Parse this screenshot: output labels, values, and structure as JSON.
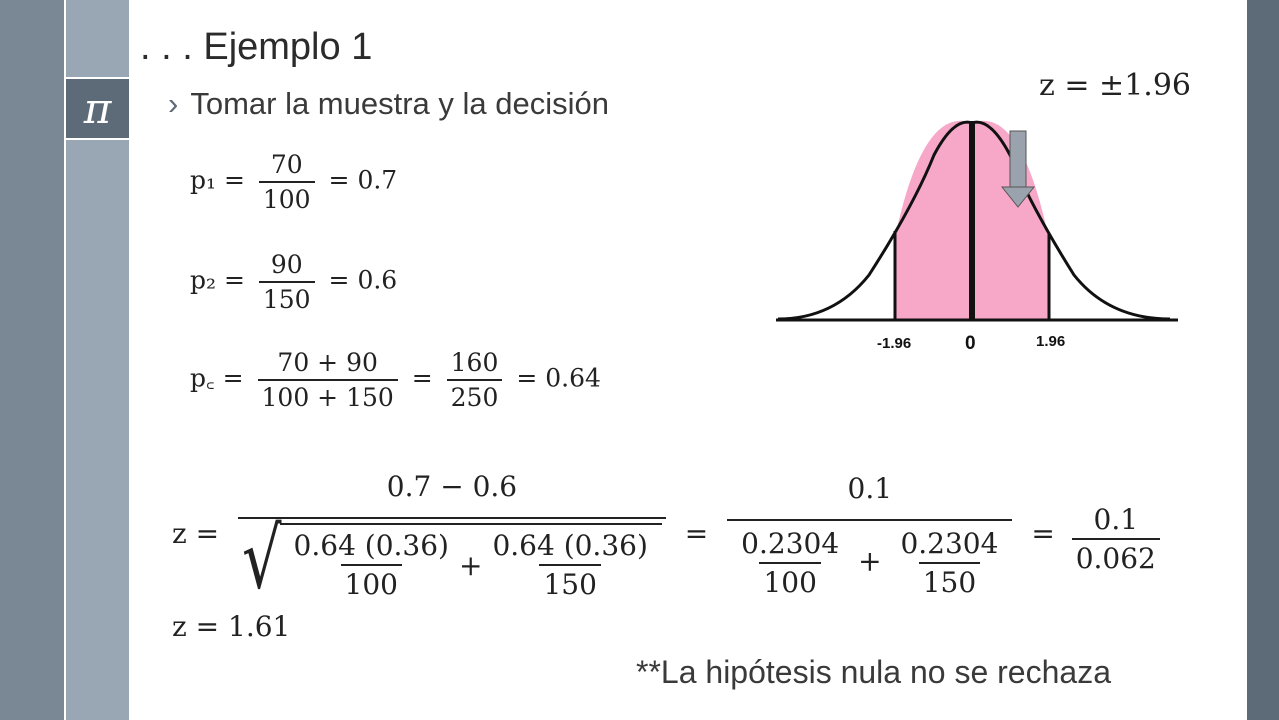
{
  "slide": {
    "title": ". . . Ejemplo 1",
    "bullet": "Tomar la muestra y la decisión",
    "bullet_marker": "›",
    "pi_symbol": "π",
    "colors": {
      "rail_dark": "#7a8794",
      "rail_light": "#99a7b4",
      "accent_dark": "#5d6b78",
      "fill_pink": "#f7a8c8"
    }
  },
  "z_critical": "z = ±1.96",
  "equations": {
    "p1": {
      "lhs": "p₁ =",
      "num": "70",
      "den": "100",
      "rhs": "= 0.7"
    },
    "p2": {
      "lhs": "p₂ =",
      "num": "90",
      "den": "150",
      "rhs": "= 0.6"
    },
    "pc": {
      "lhs": "p꜀ =",
      "num": "70 + 90",
      "den": "100 + 150",
      "eq": "=",
      "num2": "160",
      "den2": "250",
      "rhs": "= 0.64"
    },
    "z": {
      "lhs": "z =",
      "num": "0.7 − 0.6",
      "t1_num": "0.64 (0.36)",
      "t1_den": "100",
      "plus": "+",
      "t2_num": "0.64 (0.36)",
      "t2_den": "150",
      "eq1": "=",
      "mid_num": "0.1",
      "m1_num": "0.2304",
      "m1_den": "100",
      "m2_num": "0.2304",
      "m2_den": "150",
      "eq2": "=",
      "last_num": "0.1",
      "last_den": "0.062"
    },
    "z_result": "z = 1.61"
  },
  "curve": {
    "left_label": "-1.96",
    "center_label": "0",
    "right_label": "1.96"
  },
  "conclusion": "**La hipótesis nula no se rechaza"
}
